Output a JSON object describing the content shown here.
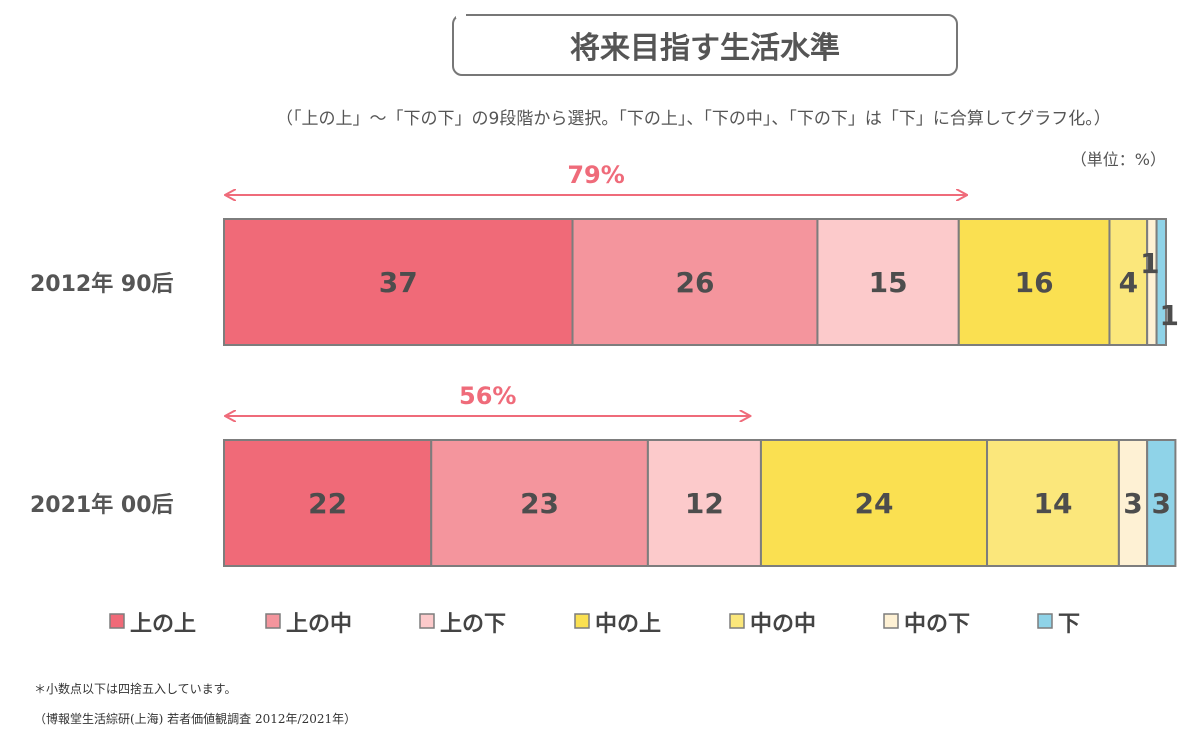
{
  "title": "将来目指す生活水準",
  "note": "（「上の上」～「下の下」の9段階から選択。「下の上」、「下の中」、「下の下」は「下」に合算してグラフ化。）",
  "unit": "（単位：%）",
  "footnotes": [
    "＊小数点以下は四捨五入しています。",
    "（博報堂生活綜研(上海) 若者価値観調査 2012年/2021年）"
  ],
  "chart_data": {
    "type": "bar",
    "orientation": "horizontal",
    "stacked": true,
    "categories": [
      "2012年 90后",
      "2021年 00后"
    ],
    "series": [
      {
        "name": "上の上",
        "color": "#f06a78",
        "values": [
          37,
          22
        ]
      },
      {
        "name": "上の中",
        "color": "#f4959d",
        "values": [
          26,
          23
        ]
      },
      {
        "name": "上の下",
        "color": "#fccacb",
        "values": [
          15,
          12
        ]
      },
      {
        "name": "中の上",
        "color": "#fae051",
        "values": [
          16,
          24
        ]
      },
      {
        "name": "中の中",
        "color": "#fbe77b",
        "values": [
          4,
          14
        ]
      },
      {
        "name": "中の下",
        "color": "#fef1d4",
        "values": [
          1,
          3
        ]
      },
      {
        "name": "下",
        "color": "#8fd3e8",
        "values": [
          1,
          3
        ]
      }
    ],
    "annotations": [
      {
        "category": "2012年 90后",
        "label": "79%",
        "value": 79
      },
      {
        "category": "2021年 00后",
        "label": "56%",
        "value": 56
      }
    ],
    "legend_position": "bottom",
    "grid": false
  }
}
